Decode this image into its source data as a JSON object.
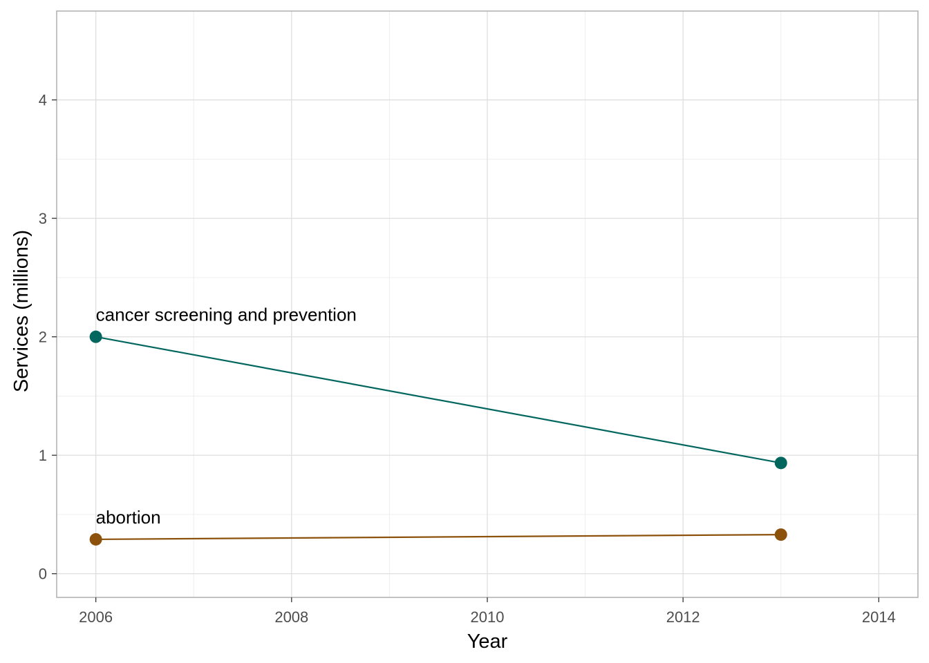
{
  "chart_data": {
    "type": "line",
    "xlabel": "Year",
    "ylabel": "Services (millions)",
    "xlim": [
      2005.6,
      2014.4
    ],
    "ylim": [
      -0.2,
      4.75
    ],
    "x_ticks": [
      2006,
      2008,
      2010,
      2012,
      2014
    ],
    "y_ticks": [
      0,
      1,
      2,
      3,
      4
    ],
    "grid": true,
    "legend": "none",
    "series": [
      {
        "key": "cancer",
        "name": "cancer screening and prevention",
        "color": "#00665e",
        "x": [
          2006,
          2013
        ],
        "y": [
          2.0,
          0.935
        ]
      },
      {
        "key": "abortion",
        "name": "abortion",
        "color": "#8c510a",
        "x": [
          2006,
          2013
        ],
        "y": [
          0.29,
          0.33
        ]
      }
    ]
  }
}
